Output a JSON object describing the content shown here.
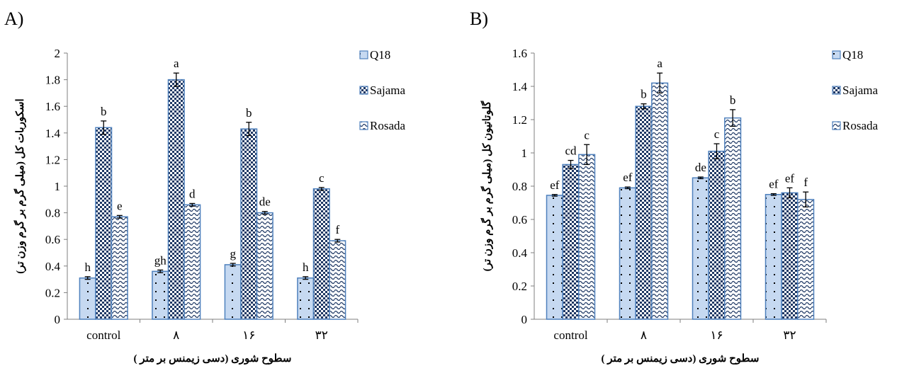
{
  "chart_data": [
    {
      "panel_label": "A)",
      "type": "bar",
      "categories": [
        "control",
        "۸",
        "۱۶",
        "۳۲"
      ],
      "xlabel": "سطوح شوری (دسی زیمنس بر متر )",
      "ylabel": "اسکوربات کل (میلی گرم بر گرم وزن تر)",
      "ylim": [
        0,
        2
      ],
      "yticks": [
        0,
        0.2,
        0.4,
        0.6,
        0.8,
        1,
        1.2,
        1.4,
        1.6,
        1.8,
        2
      ],
      "legend_position": "top-right",
      "grid": false,
      "series": [
        {
          "name": "Q18",
          "color": "#c6d9f1",
          "pattern": "dots",
          "values": [
            0.31,
            0.36,
            0.41,
            0.31
          ],
          "errors": [
            0.01,
            0.01,
            0.01,
            0.01
          ],
          "letters": [
            "h",
            "gh",
            "g",
            "h"
          ]
        },
        {
          "name": "Sajama",
          "color": "#1f3864",
          "pattern": "checker",
          "values": [
            1.44,
            1.8,
            1.43,
            0.98
          ],
          "errors": [
            0.05,
            0.05,
            0.05,
            0.01
          ],
          "letters": [
            "b",
            "a",
            "b",
            "c"
          ]
        },
        {
          "name": "Rosada",
          "color": "#4f81bd",
          "pattern": "waves",
          "values": [
            0.77,
            0.86,
            0.8,
            0.59
          ],
          "errors": [
            0.01,
            0.01,
            0.01,
            0.01
          ],
          "letters": [
            "e",
            "d",
            "de",
            "f"
          ]
        }
      ]
    },
    {
      "panel_label": "B)",
      "type": "bar",
      "categories": [
        "control",
        "۸",
        "۱۶",
        "۳۲"
      ],
      "xlabel": "سطوح شوری (دسی زیمنس بر متر )",
      "ylabel": "گلوتاتیون کل (میلی گرم بر گرم وزن تر)",
      "ylim": [
        0,
        1.6
      ],
      "yticks": [
        0,
        0.2,
        0.4,
        0.6,
        0.8,
        1,
        1.2,
        1.4,
        1.6
      ],
      "legend_position": "top-right",
      "grid": false,
      "series": [
        {
          "name": "Q18",
          "color": "#c6d9f1",
          "pattern": "dots",
          "values": [
            0.745,
            0.79,
            0.85,
            0.75
          ],
          "errors": [
            0.005,
            0.005,
            0.005,
            0.005
          ],
          "letters": [
            "ef",
            "ef",
            "de",
            "ef"
          ]
        },
        {
          "name": "Sajama",
          "color": "#1f3864",
          "pattern": "checker",
          "values": [
            0.93,
            1.28,
            1.01,
            0.76
          ],
          "errors": [
            0.025,
            0.015,
            0.045,
            0.03
          ],
          "letters": [
            "cd",
            "b",
            "c",
            "ef"
          ]
        },
        {
          "name": "Rosada",
          "color": "#4f81bd",
          "pattern": "waves",
          "values": [
            0.99,
            1.42,
            1.21,
            0.72
          ],
          "errors": [
            0.06,
            0.06,
            0.05,
            0.045
          ],
          "letters": [
            "c",
            "a",
            "b",
            "f"
          ]
        }
      ]
    }
  ]
}
